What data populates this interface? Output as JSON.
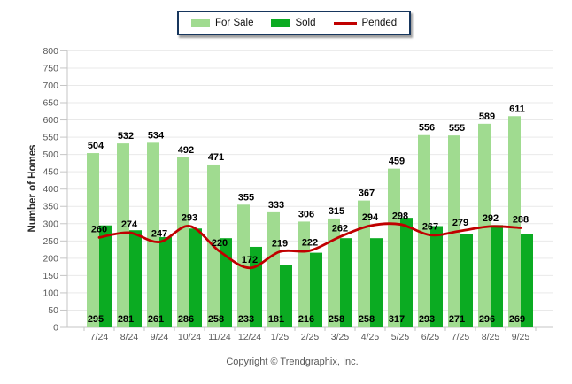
{
  "legend": {
    "items": [
      {
        "label": "For Sale",
        "type": "bar",
        "color": "#A0DB90"
      },
      {
        "label": "Sold",
        "type": "bar",
        "color": "#0BAB22"
      },
      {
        "label": "Pended",
        "type": "line",
        "color": "#C00000"
      }
    ]
  },
  "y_axis_title": "Number of Homes",
  "footer": {
    "copyright": "Copyright © Trendgraphix, Inc."
  },
  "colors": {
    "for_sale": "#A0DB90",
    "sold": "#0BAB22",
    "pended": "#C00000",
    "legend_border": "#17365D",
    "grid": "#E9E9E9",
    "axis": "#C6C6C6",
    "tick_text": "#595959",
    "value_label": "#000000"
  },
  "chart_data": {
    "type": "bar",
    "title": "",
    "categories": [
      "7/24",
      "8/24",
      "9/24",
      "10/24",
      "11/24",
      "12/24",
      "1/25",
      "2/25",
      "3/25",
      "4/25",
      "5/25",
      "6/25",
      "7/25",
      "8/25",
      "9/25"
    ],
    "series": [
      {
        "name": "For Sale",
        "type": "bar",
        "color": "#A0DB90",
        "values": [
          504,
          532,
          534,
          492,
          471,
          355,
          333,
          306,
          315,
          367,
          459,
          556,
          555,
          589,
          611
        ]
      },
      {
        "name": "Sold",
        "type": "bar",
        "color": "#0BAB22",
        "values": [
          295,
          281,
          261,
          286,
          258,
          233,
          181,
          216,
          258,
          258,
          317,
          293,
          271,
          296,
          269
        ]
      },
      {
        "name": "Pended",
        "type": "line",
        "color": "#C00000",
        "values": [
          260,
          274,
          247,
          293,
          220,
          172,
          219,
          222,
          262,
          294,
          298,
          267,
          279,
          292,
          288
        ]
      }
    ],
    "xlabel": "",
    "ylabel": "Number of Homes",
    "ylim": [
      0,
      800
    ],
    "ytick_step": 50,
    "grid": "horizontal",
    "legend_position": "top-center",
    "value_labels": "all-series"
  }
}
